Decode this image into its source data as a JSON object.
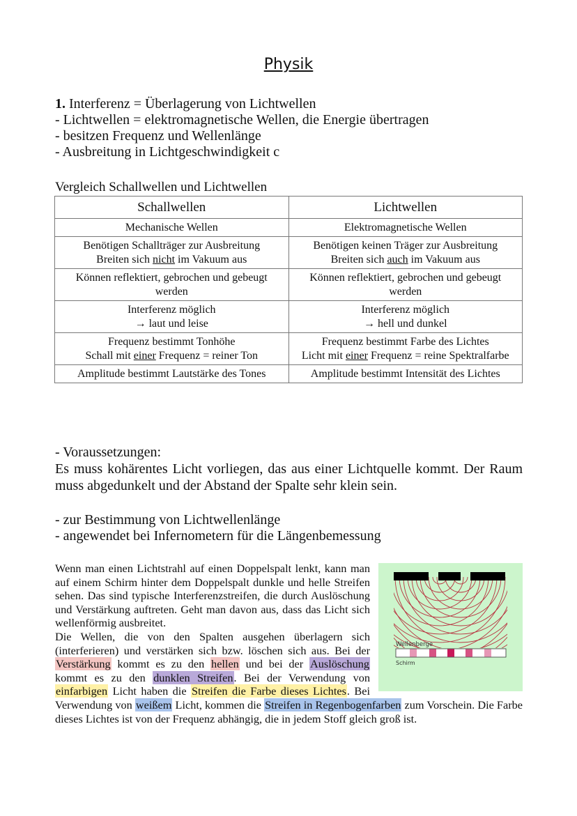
{
  "title": "Physik",
  "intro": {
    "number": "1.",
    "line1": " Interferenz = Überlagerung von Lichtwellen",
    "line2": "- Lichtwellen = elektromagnetische Wellen, die Energie übertragen",
    "line3": "- besitzen Frequenz und Wellenlänge",
    "line4": "- Ausbreitung in Lichtgeschwindigkeit c"
  },
  "comparison": {
    "caption": "Vergleich Schallwellen und Lichtwellen",
    "headers": [
      "Schallwellen",
      "Lichtwellen"
    ],
    "rows": [
      [
        [
          [
            {
              "t": "Mechanische Wellen"
            }
          ]
        ],
        [
          [
            {
              "t": "Elektromagnetische Wellen"
            }
          ]
        ]
      ],
      [
        [
          [
            {
              "t": "Benötigen Schallträger zur Ausbreitung"
            }
          ],
          [
            {
              "t": "Breiten sich "
            },
            {
              "t": "nicht",
              "u": true
            },
            {
              "t": " im Vakuum aus"
            }
          ]
        ],
        [
          [
            {
              "t": "Benötigen keinen Träger zur Ausbreitung"
            }
          ],
          [
            {
              "t": "Breiten sich "
            },
            {
              "t": "auch",
              "u": true
            },
            {
              "t": " im Vakuum aus"
            }
          ]
        ]
      ],
      [
        [
          [
            {
              "t": "Können reflektiert, gebrochen und gebeugt werden"
            }
          ]
        ],
        [
          [
            {
              "t": "Können reflektiert, gebrochen und gebeugt werden"
            }
          ]
        ]
      ],
      [
        [
          [
            {
              "t": "Interferenz möglich"
            }
          ],
          [
            {
              "t": "→ laut und leise"
            }
          ]
        ],
        [
          [
            {
              "t": "Interferenz möglich"
            }
          ],
          [
            {
              "t": "→ hell und dunkel"
            }
          ]
        ]
      ],
      [
        [
          [
            {
              "t": "Frequenz bestimmt Tonhöhe"
            }
          ],
          [
            {
              "t": "Schall mit "
            },
            {
              "t": "einer",
              "u": true
            },
            {
              "t": " Frequenz = reiner Ton"
            }
          ]
        ],
        [
          [
            {
              "t": "Frequenz bestimmt Farbe des Lichtes"
            }
          ],
          [
            {
              "t": "Licht mit "
            },
            {
              "t": "einer",
              "u": true
            },
            {
              "t": " Frequenz = reine Spektralfarbe"
            }
          ]
        ]
      ],
      [
        [
          [
            {
              "t": "Amplitude bestimmt Lautstärke des Tones"
            }
          ]
        ],
        [
          [
            {
              "t": "Amplitude bestimmt Intensität des Lichtes"
            }
          ]
        ]
      ]
    ]
  },
  "requirements": {
    "heading": "- Voraussetzungen:",
    "text": "Es muss kohärentes Licht vorliegen, das aus einer Lichtquelle kommt. Der Raum muss abgedunkelt und der Abstand der Spalte sehr klein sein."
  },
  "uses": {
    "line1": "- zur Bestimmung von Lichtwellenlänge",
    "line2": "- angewendet bei Infernometern für die Längenbemessung"
  },
  "highlight_colors": {
    "pink": "#f4c6c3",
    "purple": "#b9a9d9",
    "yellow": "#fff1a6",
    "blue": "#a9c4ec"
  },
  "paragraph": [
    {
      "t": "Wenn man einen Lichtstrahl auf einen Doppelspalt lenkt, kann man auf einem Schirm hinter dem Doppelspalt dunkle und helle Streifen sehen. Das sind typische Interferenzstreifen, die durch Auslöschung und Verstärkung auftreten. Geht man davon aus, dass das Licht sich wellenförmig ausbreitet. "
    },
    {
      "br": true
    },
    {
      "t": "Die Wellen, die von den Spalten ausgehen überlagern sich (interferieren) und verstärken sich bzw. löschen sich aus. Bei der "
    },
    {
      "t": "Verstärkung",
      "hl": "pink"
    },
    {
      "t": " kommt es zu den "
    },
    {
      "t": "hellen",
      "hl": "pink"
    },
    {
      "t": " und bei der "
    },
    {
      "t": "Auslöschung",
      "hl": "purple"
    },
    {
      "t": " kommt es zu den "
    },
    {
      "t": "dunklen Streifen",
      "hl": "purple"
    },
    {
      "t": ". Bei der Verwendung von "
    },
    {
      "t": "einfarbigen",
      "hl": "yellow"
    },
    {
      "t": " Licht haben die "
    },
    {
      "t": "Streifen die Farbe dieses Lichtes",
      "hl": "yellow"
    },
    {
      "t": ". Bei Verwendung von "
    },
    {
      "t": "weißem",
      "hl": "blue"
    },
    {
      "t": " Licht, kommen die "
    },
    {
      "t": "Streifen in Regenbogenfarben",
      "hl": "blue"
    },
    {
      "t": " zum Vorschein. Die Farbe dieses Lichtes ist von der Frequenz abhängig, die in jedem Stoff gleich groß ist."
    }
  ],
  "figure": {
    "label_crests": "Wellenberge",
    "label_screen": "Schirm",
    "background": "#ccf5cc",
    "wave_color": "#b8323f",
    "fringe_color": "#c8195a"
  }
}
